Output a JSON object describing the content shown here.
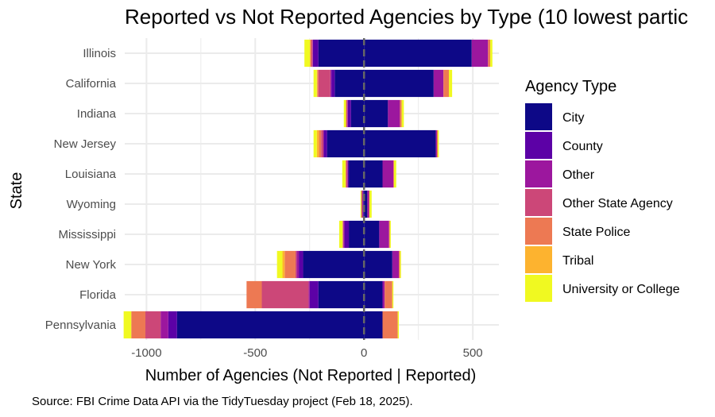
{
  "chart_data": {
    "type": "bar",
    "orientation": "horizontal-diverging",
    "title": "Reported vs Not Reported Agencies by Type (10 lowest partic",
    "xlabel": "Number of Agencies (Not Reported | Reported)",
    "ylabel": "State",
    "caption": "Source: FBI Crime Data API via the TidyTuesday project (Feb 18, 2025).",
    "xlim": [
      -1100,
      620
    ],
    "xticks": [
      -1000,
      -500,
      0,
      500
    ],
    "xtick_labels": [
      "-1000",
      "-500",
      "0",
      "500"
    ],
    "grid": true,
    "legend_position": "right",
    "legend_title": "Agency Type",
    "categories": [
      "Illinois",
      "California",
      "Indiana",
      "New Jersey",
      "Louisiana",
      "Wyoming",
      "Mississippi",
      "New York",
      "Florida",
      "Pennsylvania"
    ],
    "series": [
      {
        "name": "City",
        "color": "#0d0887",
        "not_reported": [
          210,
          135,
          60,
          170,
          70,
          2,
          70,
          280,
          210,
          860
        ],
        "reported": [
          495,
          320,
          110,
          330,
          85,
          15,
          70,
          130,
          85,
          85
        ]
      },
      {
        "name": "County",
        "color": "#5c01a6",
        "not_reported": [
          25,
          15,
          15,
          15,
          5,
          4,
          20,
          20,
          40,
          40
        ]
      },
      {
        "name": "Other",
        "color": "#9c179e",
        "not_reported": [
          2,
          5,
          2,
          2,
          2,
          0,
          5,
          10,
          5,
          35
        ],
        "reported": [
          75,
          45,
          55,
          5,
          50,
          8,
          45,
          30,
          10,
          0
        ]
      },
      {
        "name": "Other State Agency",
        "color": "#cc4778",
        "not_reported": [
          5,
          55,
          4,
          10,
          5,
          6,
          2,
          5,
          215,
          70
        ]
      },
      {
        "name": "State Police",
        "color": "#ed7953",
        "not_reported": [
          5,
          5,
          2,
          10,
          3,
          0,
          2,
          50,
          70,
          65
        ],
        "reported": [
          10,
          25,
          8,
          4,
          3,
          2,
          3,
          5,
          35,
          70
        ]
      },
      {
        "name": "Tribal",
        "color": "#fdb32f",
        "not_reported": [
          2,
          2,
          0,
          10,
          0,
          0,
          0,
          10,
          0,
          0
        ]
      },
      {
        "name": "University or College",
        "color": "#f0f921",
        "not_reported": [
          25,
          15,
          10,
          15,
          15,
          4,
          15,
          25,
          0,
          35
        ],
        "reported": [
          10,
          15,
          10,
          5,
          10,
          10,
          5,
          5,
          5,
          5
        ]
      }
    ]
  }
}
